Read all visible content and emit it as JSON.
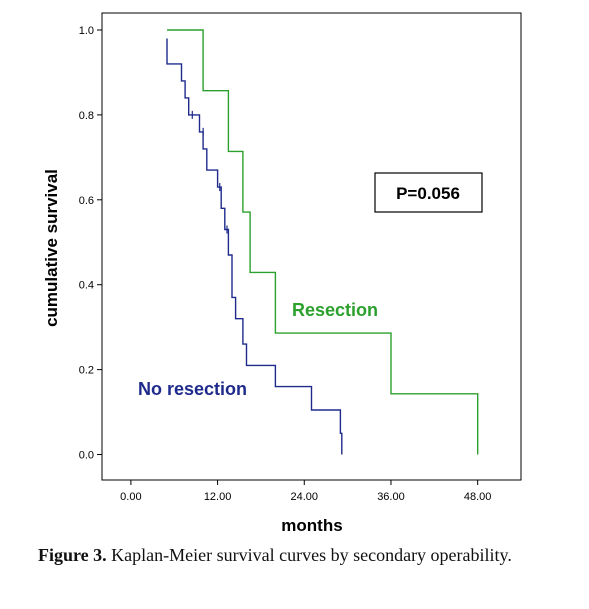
{
  "chart_data": {
    "type": "line",
    "subtype": "kaplan-meier step",
    "xlabel": "months",
    "ylabel": "cumulative survival",
    "xlim": [
      -4,
      54
    ],
    "ylim": [
      -0.06,
      1.04
    ],
    "x_ticks": [
      0,
      12,
      24,
      36,
      48
    ],
    "x_tick_labels": [
      "0.00",
      "12.00",
      "24.00",
      "36.00",
      "48.00"
    ],
    "y_ticks": [
      0,
      0.2,
      0.4,
      0.6,
      0.8,
      1.0
    ],
    "y_tick_labels": [
      "0.0",
      "0.2",
      "0.4",
      "0.6",
      "0.8",
      "1.0"
    ],
    "grid": false,
    "annotation": "P=0.056",
    "series": [
      {
        "name": "Resection",
        "color": "#2ca02c",
        "steps": [
          [
            5,
            1.0
          ],
          [
            10,
            1.0
          ],
          [
            10,
            0.857
          ],
          [
            13.5,
            0.857
          ],
          [
            13.5,
            0.714
          ],
          [
            15.5,
            0.714
          ],
          [
            15.5,
            0.571
          ],
          [
            16.5,
            0.571
          ],
          [
            16.5,
            0.429
          ],
          [
            20,
            0.429
          ],
          [
            20,
            0.286
          ],
          [
            36,
            0.286
          ],
          [
            36,
            0.143
          ],
          [
            48,
            0.143
          ],
          [
            48,
            0.0
          ]
        ],
        "censored": []
      },
      {
        "name": "No resection",
        "color": "#1f2b8c",
        "steps": [
          [
            5,
            0.98
          ],
          [
            5,
            0.92
          ],
          [
            7,
            0.92
          ],
          [
            7,
            0.88
          ],
          [
            7.5,
            0.88
          ],
          [
            7.5,
            0.84
          ],
          [
            8,
            0.84
          ],
          [
            8,
            0.8
          ],
          [
            9.5,
            0.8
          ],
          [
            9.5,
            0.76
          ],
          [
            10,
            0.76
          ],
          [
            10,
            0.72
          ],
          [
            10.5,
            0.72
          ],
          [
            10.5,
            0.67
          ],
          [
            12,
            0.67
          ],
          [
            12,
            0.63
          ],
          [
            12.5,
            0.63
          ],
          [
            12.5,
            0.58
          ],
          [
            13,
            0.58
          ],
          [
            13,
            0.53
          ],
          [
            13.5,
            0.53
          ],
          [
            13.5,
            0.47
          ],
          [
            14,
            0.47
          ],
          [
            14,
            0.37
          ],
          [
            14.5,
            0.37
          ],
          [
            14.5,
            0.32
          ],
          [
            15.5,
            0.32
          ],
          [
            15.5,
            0.26
          ],
          [
            16,
            0.26
          ],
          [
            16,
            0.21
          ],
          [
            20,
            0.21
          ],
          [
            20,
            0.16
          ],
          [
            25,
            0.16
          ],
          [
            25,
            0.105
          ],
          [
            29,
            0.105
          ],
          [
            29,
            0.05
          ],
          [
            29.2,
            0.05
          ],
          [
            29.2,
            0.0
          ]
        ],
        "censored": [
          [
            8.5,
            0.8
          ],
          [
            10,
            0.76
          ],
          [
            12.3,
            0.63
          ],
          [
            13.3,
            0.53
          ]
        ]
      }
    ]
  },
  "caption": {
    "label": "Figure 3.",
    "text": " Kaplan-Meier survival curves by secondary operability."
  }
}
